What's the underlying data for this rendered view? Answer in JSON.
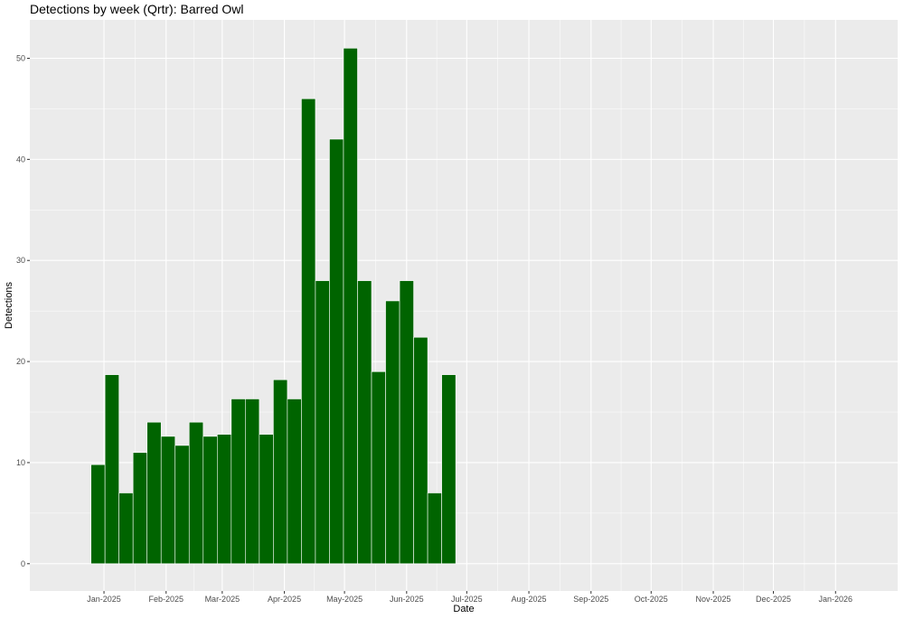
{
  "chart_data": {
    "type": "bar",
    "title": "Detections by week (Qrtr): Barred Owl",
    "xlabel": "Date",
    "ylabel": "Detections",
    "ylim": [
      -2.7,
      53.8
    ],
    "xlim": [
      "2024-11-25",
      "2026-02-01"
    ],
    "y_ticks": [
      0,
      10,
      20,
      30,
      40,
      50
    ],
    "x_ticks": [
      {
        "date": "2025-01-01",
        "label": "Jan-2025"
      },
      {
        "date": "2025-02-01",
        "label": "Feb-2025"
      },
      {
        "date": "2025-03-01",
        "label": "Mar-2025"
      },
      {
        "date": "2025-04-01",
        "label": "Apr-2025"
      },
      {
        "date": "2025-05-01",
        "label": "May-2025"
      },
      {
        "date": "2025-06-01",
        "label": "Jun-2025"
      },
      {
        "date": "2025-07-01",
        "label": "Jul-2025"
      },
      {
        "date": "2025-08-01",
        "label": "Aug-2025"
      },
      {
        "date": "2025-09-01",
        "label": "Sep-2025"
      },
      {
        "date": "2025-10-01",
        "label": "Oct-2025"
      },
      {
        "date": "2025-11-01",
        "label": "Nov-2025"
      },
      {
        "date": "2025-12-01",
        "label": "Dec-2025"
      },
      {
        "date": "2026-01-01",
        "label": "Jan-2026"
      }
    ],
    "x": [
      "2024-12-29",
      "2025-01-05",
      "2025-01-12",
      "2025-01-19",
      "2025-01-26",
      "2025-02-02",
      "2025-02-09",
      "2025-02-16",
      "2025-02-23",
      "2025-03-02",
      "2025-03-09",
      "2025-03-16",
      "2025-03-23",
      "2025-03-30",
      "2025-04-06",
      "2025-04-13",
      "2025-04-20",
      "2025-04-27",
      "2025-05-04",
      "2025-05-11",
      "2025-05-18",
      "2025-05-25",
      "2025-06-01",
      "2025-06-08",
      "2025-06-15",
      "2025-06-22"
    ],
    "values": [
      9.8,
      18.7,
      7,
      11,
      14,
      12.6,
      11.7,
      14,
      12.6,
      12.8,
      16.3,
      16.3,
      12.8,
      18.2,
      16.3,
      46,
      28,
      42,
      51,
      28,
      19,
      26,
      28,
      22.4,
      7,
      18.7
    ],
    "bar_color": "#006400",
    "panel_color": "#ebebeb",
    "grid": true,
    "legend": "none"
  }
}
